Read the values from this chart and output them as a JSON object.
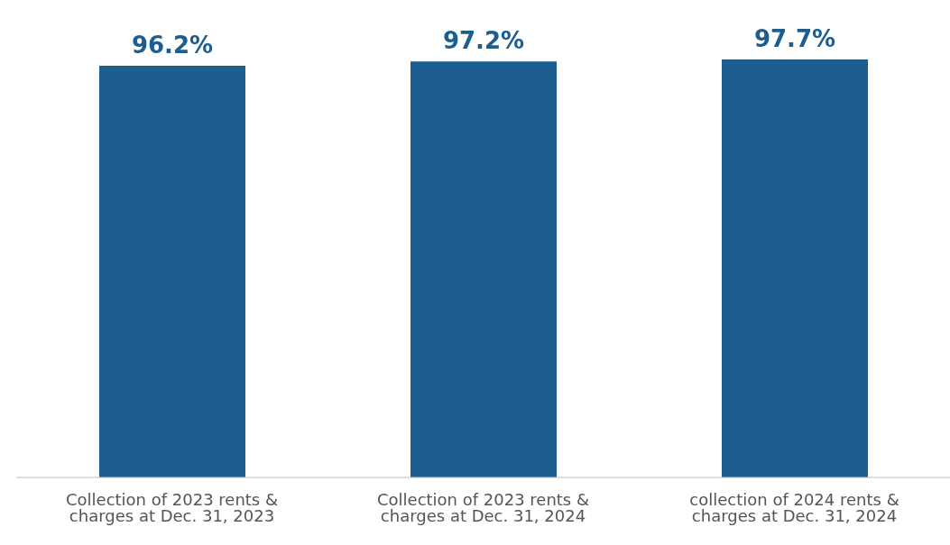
{
  "chart_data": {
    "type": "bar",
    "categories": [
      "Collection of 2023 rents & charges at Dec. 31, 2023",
      "Collection of 2023 rents & charges at Dec. 31, 2024",
      "collection of 2024 rents & charges at Dec. 31, 2024"
    ],
    "values": [
      96.2,
      97.2,
      97.7
    ],
    "value_labels": [
      "96.2%",
      "97.2%",
      "97.7%"
    ],
    "color": "#1b5e8f"
  }
}
